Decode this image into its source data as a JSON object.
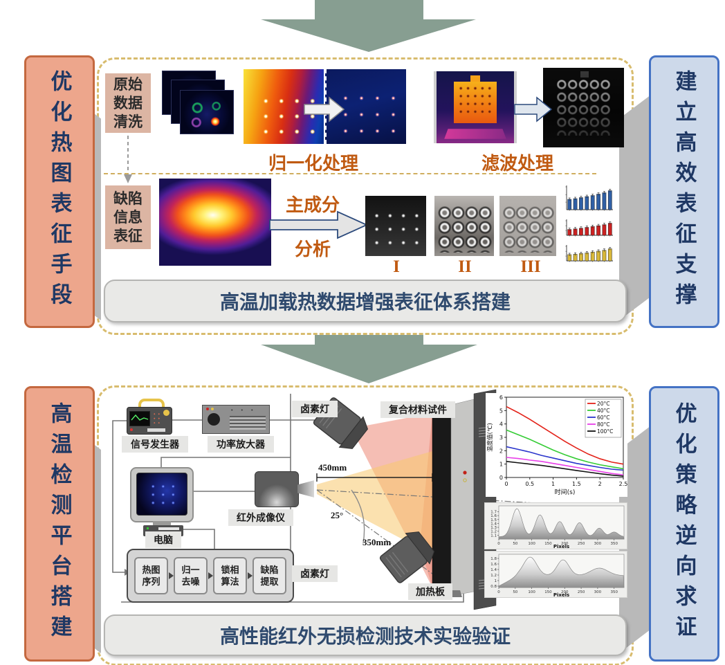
{
  "colors": {
    "flow_arrow": "#879e91",
    "sidebar_orange_fill": "#eda68c",
    "sidebar_orange_border": "#c4683f",
    "sidebar_blue_fill": "#cdd9ea",
    "sidebar_blue_border": "#4472c4",
    "sidebar_text": "#1f3864",
    "panel_dash_border": "#d8bc6e",
    "accent_orange_text": "#c05a11",
    "caption_text": "#2f4a6e",
    "label_pink_bg": "#dcb5a3"
  },
  "panel_top": {
    "sidebar_left": "优化热图表征手段",
    "sidebar_right": "建立高效表征支撑",
    "raw_box_lines": [
      "原始",
      "数据",
      "清洗"
    ],
    "defect_box_lines": [
      "缺陷",
      "信息",
      "表征"
    ],
    "normalize_label": "归一化处理",
    "filter_label": "滤波处理",
    "pca_label_top": "主成分",
    "pca_label_bottom": "分析",
    "pca_outputs": [
      "I",
      "II",
      "III"
    ],
    "caption": "高温加载热数据增强表征体系搭建"
  },
  "panel_bottom": {
    "sidebar_left": "高温检测平台搭建",
    "sidebar_right": "优化策略逆向求证",
    "device_labels": {
      "signal_generator": "信号发生器",
      "power_amplifier": "功率放大器",
      "halogen_lamp_top": "卤素灯",
      "specimen": "复合材料试件",
      "ir_camera": "红外成像仪",
      "computer": "电脑",
      "halogen_lamp_bottom": "卤素灯",
      "heating_plate": "加热板"
    },
    "dimensions": {
      "camera_distance": "450mm",
      "lamp_distance": "350mm",
      "lamp_angle": "25°"
    },
    "flow_steps": [
      {
        "line1": "热图",
        "line2": "序列"
      },
      {
        "line1": "归一",
        "line2": "去噪"
      },
      {
        "line1": "锁相",
        "line2": "算法"
      },
      {
        "line1": "缺陷",
        "line2": "提取"
      }
    ],
    "caption": "高性能红外无损检测技术实验验证"
  },
  "chart_data": [
    {
      "id": "temp-decay",
      "type": "line",
      "title": "",
      "xlabel": "时间(s)",
      "ylabel": "温度值(℃)",
      "xlim": [
        0,
        2.5
      ],
      "ylim": [
        0,
        6
      ],
      "xticks": [
        0,
        0.5,
        1,
        1.5,
        2,
        2.5
      ],
      "yticks": [
        0,
        1,
        2,
        3,
        4,
        5,
        6
      ],
      "grid": false,
      "legend_position": "top-right",
      "x": [
        0,
        0.25,
        0.5,
        0.75,
        1.0,
        1.25,
        1.5,
        1.75,
        2.0,
        2.25,
        2.5
      ],
      "series": [
        {
          "name": "20°C",
          "color": "#e32219",
          "values": [
            5.3,
            4.85,
            4.35,
            3.8,
            3.25,
            2.7,
            2.2,
            1.75,
            1.4,
            1.15,
            1.0
          ]
        },
        {
          "name": "40°C",
          "color": "#35cc35",
          "values": [
            3.55,
            3.2,
            2.85,
            2.45,
            2.05,
            1.7,
            1.4,
            1.15,
            0.95,
            0.8,
            0.65
          ]
        },
        {
          "name": "60°C",
          "color": "#2a35cc",
          "values": [
            2.3,
            2.1,
            1.9,
            1.65,
            1.45,
            1.25,
            1.05,
            0.9,
            0.75,
            0.62,
            0.55
          ]
        },
        {
          "name": "80°C",
          "color": "#e83ee8",
          "values": [
            1.5,
            1.42,
            1.3,
            1.2,
            1.05,
            0.9,
            0.75,
            0.6,
            0.45,
            0.3,
            0.2
          ]
        },
        {
          "name": "100°C",
          "color": "#111111",
          "values": [
            1.2,
            1.1,
            1.0,
            0.9,
            0.78,
            0.65,
            0.52,
            0.4,
            0.28,
            0.18,
            0.1
          ]
        }
      ]
    },
    {
      "id": "profile-1",
      "type": "area",
      "xlabel": "Pixels",
      "xlim": [
        0,
        380
      ],
      "ylim": [
        1.0,
        1.85
      ],
      "xticks": [
        0,
        50,
        100,
        150,
        200,
        250,
        300,
        350
      ],
      "yticks": [
        1.1,
        1.2,
        1.3,
        1.4,
        1.5,
        1.6,
        1.7
      ],
      "baseline": 1.06,
      "peaks": [
        {
          "x": 55,
          "height": 1.78,
          "width": 15
        },
        {
          "x": 125,
          "height": 1.62,
          "width": 14
        },
        {
          "x": 185,
          "height": 1.45,
          "width": 13
        },
        {
          "x": 245,
          "height": 1.42,
          "width": 13
        },
        {
          "x": 305,
          "height": 1.28,
          "width": 12
        },
        {
          "x": 350,
          "height": 1.18,
          "width": 12
        }
      ]
    },
    {
      "id": "profile-2",
      "type": "area",
      "xlabel": "Pixels",
      "xlim": [
        0,
        380
      ],
      "ylim": [
        0.75,
        1.95
      ],
      "xticks": [
        0,
        50,
        100,
        150,
        200,
        250,
        300,
        350
      ],
      "yticks": [
        0.8,
        1.0,
        1.2,
        1.4,
        1.6,
        1.8
      ],
      "baseline": 1.18,
      "ramp": {
        "from": 0.8,
        "end": 60
      },
      "peaks": [
        {
          "x": 95,
          "height": 1.85,
          "width": 20
        },
        {
          "x": 195,
          "height": 1.75,
          "width": 18
        },
        {
          "x": 305,
          "height": 1.45,
          "width": 26
        }
      ]
    },
    {
      "id": "mini-bars",
      "type": "bar",
      "note": "three small increasing bar charts with error bars",
      "charts": [
        {
          "color": "#2f5fa5",
          "values": [
            3.0,
            3.2,
            3.5,
            3.8,
            4.1,
            4.5,
            4.9,
            5.5
          ]
        },
        {
          "color": "#cc2222",
          "values": [
            2.8,
            3.1,
            3.4,
            3.8,
            4.2,
            4.6,
            5.1,
            5.8
          ]
        },
        {
          "color": "#d8b83a",
          "values": [
            2.9,
            3.1,
            3.4,
            3.7,
            4.1,
            4.5,
            4.9,
            5.6
          ]
        }
      ]
    }
  ]
}
